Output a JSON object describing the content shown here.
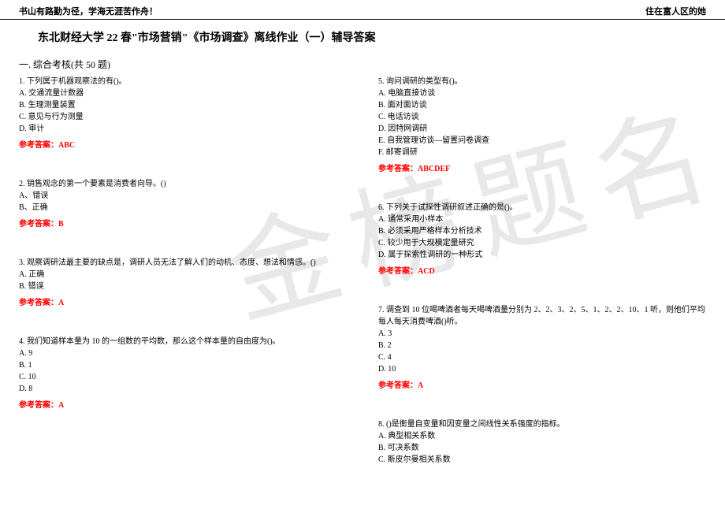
{
  "header": {
    "left": "书山有路勤为径，学海无涯苦作舟！",
    "right": "住在富人区的她"
  },
  "title": "东北财经大学 22 春\"市场营销\"《市场调查》离线作业（一）辅导答案",
  "section": "一. 综合考核(共 50 题)",
  "watermark": "金榜题名",
  "answer_label": "参考答案：",
  "left_questions": [
    {
      "q": "1. 下列属于机器观察法的有()。",
      "opts": [
        "A. 交通流量计数器",
        "B. 生理测量装置",
        "C. 意见与行为测量",
        "D. 审计"
      ],
      "ans": "ABC"
    },
    {
      "q": "2. 销售观念的第一个要素是消费者向导。()",
      "opts": [
        "A、错误",
        "B、正确"
      ],
      "ans": "B"
    },
    {
      "q": "3. 观察调研法最主要的缺点是，调研人员无法了解人们的动机、态度、想法和情感。()",
      "opts": [
        "A. 正确",
        "B. 错误"
      ],
      "ans": "A"
    },
    {
      "q": "4. 我们知道样本量为 10 的一组数的平均数，那么这个样本量的自由度为()。",
      "opts": [
        "A. 9",
        "B. 1",
        "C. 10",
        "D. 8"
      ],
      "ans": "A"
    }
  ],
  "right_questions": [
    {
      "q": "5. 询问调研的类型有()。",
      "opts": [
        "A. 电脑直接访谈",
        "B. 面对面访谈",
        "C. 电话访谈",
        "D. 因特网调研",
        "E. 自我管理访谈—留置问卷调查",
        "F. 邮寄调研"
      ],
      "ans": "ABCDEF"
    },
    {
      "q": "6. 下列关于试探性调研叙述正确的是()。",
      "opts": [
        "A. 通常采用小样本",
        "B. 必须采用严格样本分析技术",
        "C. 较少用于大规模定量研究",
        "D. 属于探索性调研的一种形式"
      ],
      "ans": "ACD"
    },
    {
      "q": "7. 调查到 10 位喝啤酒者每天喝啤酒量分别为 2、2、3、2、5、1、2、2、10、1 听，则他们平均每人每天消费啤酒()听。",
      "opts": [
        "A. 3",
        "B. 2",
        "C. 4",
        "D. 10"
      ],
      "ans": "A"
    },
    {
      "q": "8. ()是衡量自变量和因变量之间线性关系强度的指标。",
      "opts": [
        "A. 典型相关系数",
        "B. 可决系数",
        "C. 斯皮尔曼相关系数"
      ],
      "ans": null
    }
  ],
  "colors": {
    "answer": "#ff0000",
    "watermark": "#e8e8e8",
    "text": "#000000",
    "bg": "#ffffff"
  },
  "fonts": {
    "body": 10,
    "title": 14,
    "header": 11,
    "section": 12
  }
}
